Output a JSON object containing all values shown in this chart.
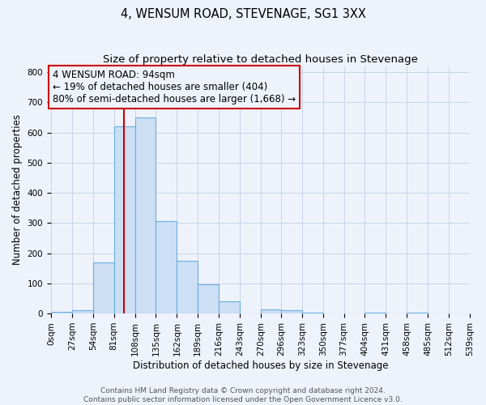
{
  "title": "4, WENSUM ROAD, STEVENAGE, SG1 3XX",
  "subtitle": "Size of property relative to detached houses in Stevenage",
  "xlabel": "Distribution of detached houses by size in Stevenage",
  "ylabel": "Number of detached properties",
  "bin_edges": [
    0,
    27,
    54,
    81,
    108,
    135,
    162,
    189,
    216,
    243,
    270,
    296,
    323,
    350,
    377,
    404,
    431,
    458,
    485,
    512,
    539
  ],
  "bar_heights": [
    5,
    12,
    170,
    620,
    650,
    305,
    175,
    97,
    40,
    0,
    13,
    10,
    2,
    0,
    0,
    2,
    0,
    2,
    0,
    0
  ],
  "bar_color": "#ccdff5",
  "bar_edge_color": "#6aaee0",
  "property_size": 94,
  "vline_color": "#cc0000",
  "annotation_text": "4 WENSUM ROAD: 94sqm\n← 19% of detached houses are smaller (404)\n80% of semi-detached houses are larger (1,668) →",
  "annotation_box_color": "#cc0000",
  "ylim": [
    0,
    820
  ],
  "yticks": [
    0,
    100,
    200,
    300,
    400,
    500,
    600,
    700,
    800
  ],
  "grid_color": "#c8d4e8",
  "bg_color": "#eef2fb",
  "footer_line1": "Contains HM Land Registry data © Crown copyright and database right 2024.",
  "footer_line2": "Contains public sector information licensed under the Open Government Licence v3.0.",
  "title_fontsize": 10.5,
  "subtitle_fontsize": 9.5,
  "axis_label_fontsize": 8.5,
  "tick_fontsize": 7.5,
  "annotation_fontsize": 8.5,
  "footer_fontsize": 6.5
}
